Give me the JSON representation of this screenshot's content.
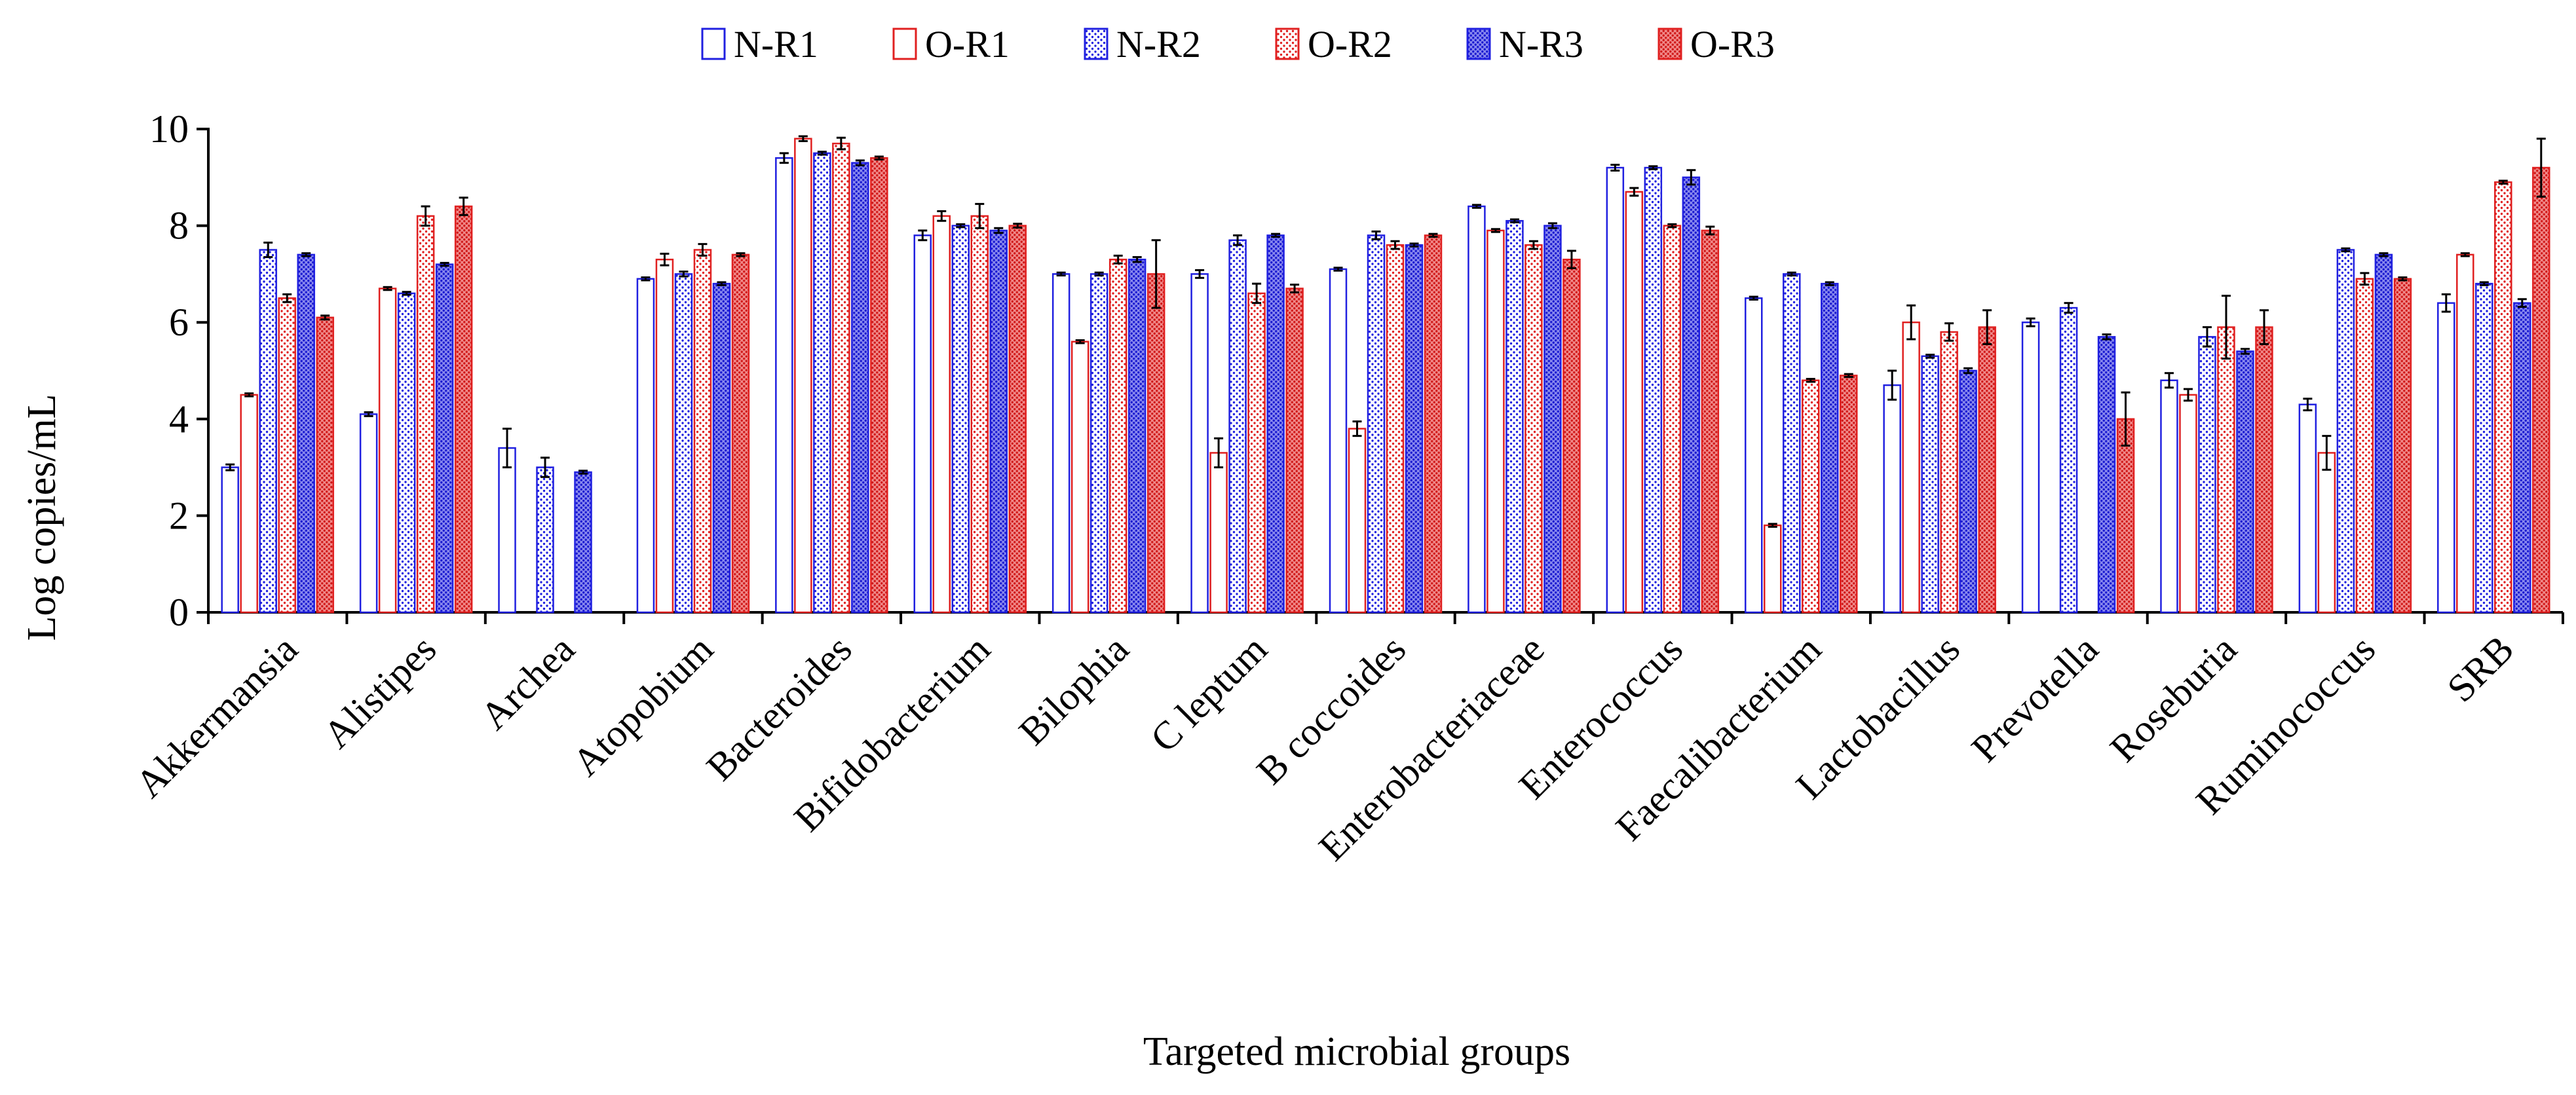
{
  "chart_data": {
    "type": "bar",
    "title": "",
    "xlabel": "Targeted microbial groups",
    "ylabel": "Log copies/mL",
    "ylim": [
      0,
      10
    ],
    "yticks": [
      0,
      2,
      4,
      6,
      8,
      10
    ],
    "grid": false,
    "legend_position": "top-center",
    "categories": [
      "Akkermansia",
      "Alistipes",
      "Archea",
      "Atopobium",
      "Bacteroides",
      "Bifidobacterium",
      "Bilophia",
      "C leptum",
      "B coccoides",
      "Enterobacteriaceae",
      "Enterococcus",
      "Faecalibacterium",
      "Lactobacillus",
      "Prevotella",
      "Roseburia",
      "Ruminococcus",
      "SRB"
    ],
    "series": [
      {
        "name": "N-R1",
        "color": "#2020e0",
        "pattern": "plain",
        "values": [
          3.0,
          4.1,
          3.4,
          6.9,
          9.4,
          7.8,
          7.0,
          7.0,
          7.1,
          8.4,
          9.2,
          6.5,
          4.7,
          6.0,
          4.8,
          4.3,
          6.4
        ],
        "errors": [
          0.06,
          0.04,
          0.4,
          0.03,
          0.1,
          0.1,
          0.03,
          0.08,
          0.03,
          0.03,
          0.06,
          0.03,
          0.3,
          0.08,
          0.15,
          0.12,
          0.18
        ]
      },
      {
        "name": "O-R1",
        "color": "#e02020",
        "pattern": "plain",
        "values": [
          4.5,
          6.7,
          null,
          7.3,
          9.8,
          8.2,
          5.6,
          3.3,
          3.8,
          7.9,
          8.7,
          1.8,
          6.0,
          null,
          4.5,
          3.3,
          7.4
        ],
        "errors": [
          0.03,
          0.03,
          null,
          0.12,
          0.05,
          0.1,
          0.03,
          0.3,
          0.15,
          0.03,
          0.08,
          0.03,
          0.35,
          null,
          0.12,
          0.35,
          0.03
        ]
      },
      {
        "name": "N-R2",
        "color": "#2020e0",
        "pattern": "dots",
        "values": [
          7.5,
          6.6,
          3.0,
          7.0,
          9.5,
          8.0,
          7.0,
          7.7,
          7.8,
          8.1,
          9.2,
          7.0,
          5.3,
          6.3,
          5.7,
          7.5,
          6.8
        ],
        "errors": [
          0.15,
          0.03,
          0.2,
          0.05,
          0.03,
          0.03,
          0.03,
          0.1,
          0.08,
          0.03,
          0.03,
          0.03,
          0.03,
          0.1,
          0.2,
          0.03,
          0.03
        ]
      },
      {
        "name": "O-R2",
        "color": "#e02020",
        "pattern": "dots",
        "values": [
          6.5,
          8.2,
          null,
          7.5,
          9.7,
          8.2,
          7.3,
          6.6,
          7.6,
          7.6,
          8.0,
          4.8,
          5.8,
          null,
          5.9,
          6.9,
          8.9
        ],
        "errors": [
          0.08,
          0.2,
          null,
          0.12,
          0.12,
          0.25,
          0.08,
          0.2,
          0.08,
          0.08,
          0.03,
          0.03,
          0.18,
          null,
          0.65,
          0.12,
          0.03
        ]
      },
      {
        "name": "N-R3",
        "color": "#2020e0",
        "pattern": "dense",
        "values": [
          7.4,
          7.2,
          2.9,
          6.8,
          9.3,
          7.9,
          7.3,
          7.8,
          7.6,
          8.0,
          9.0,
          6.8,
          5.0,
          5.7,
          5.4,
          7.4,
          6.4
        ],
        "errors": [
          0.03,
          0.03,
          0.03,
          0.03,
          0.05,
          0.05,
          0.05,
          0.03,
          0.03,
          0.05,
          0.15,
          0.03,
          0.05,
          0.05,
          0.05,
          0.03,
          0.08
        ]
      },
      {
        "name": "O-R3",
        "color": "#e02020",
        "pattern": "dense",
        "values": [
          6.1,
          8.4,
          null,
          7.4,
          9.4,
          8.0,
          7.0,
          6.7,
          7.8,
          7.3,
          7.9,
          4.9,
          5.9,
          4.0,
          5.9,
          6.9,
          9.2
        ],
        "errors": [
          0.04,
          0.18,
          null,
          0.03,
          0.03,
          0.04,
          0.7,
          0.08,
          0.03,
          0.18,
          0.08,
          0.03,
          0.35,
          0.55,
          0.35,
          0.03,
          0.6
        ]
      }
    ]
  }
}
